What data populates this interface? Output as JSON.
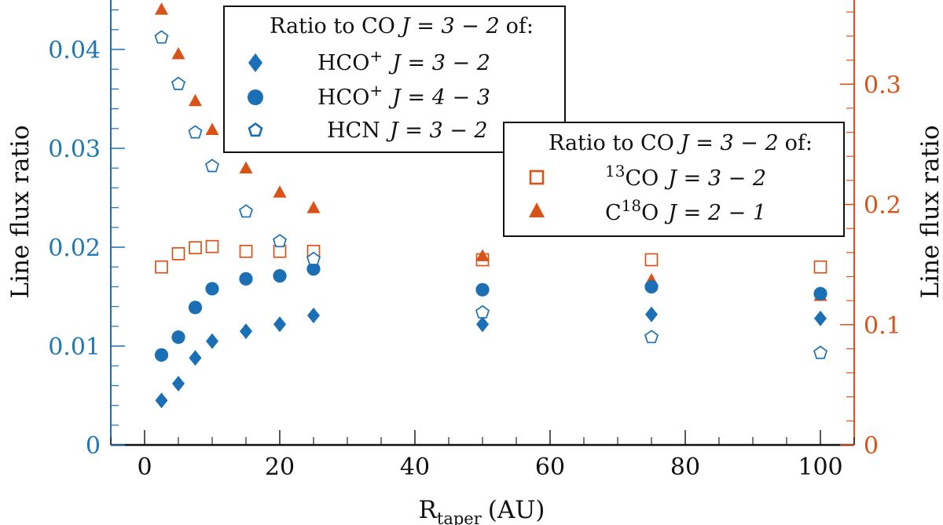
{
  "colors": {
    "blue": "#1a6fb5",
    "orange": "#d95319",
    "text": "#111111"
  },
  "chart_data": {
    "type": "scatter",
    "xlabel_main": "R",
    "xlabel_sub": "taper",
    "xlabel_unit": "(AU)",
    "ylabel_left": "Line flux ratio",
    "ylabel_right": "Line flux ratio",
    "xlim": [
      -5,
      105
    ],
    "ylim_left": [
      0,
      0.045
    ],
    "ylim_right": [
      0,
      0.37
    ],
    "x_ticks": [
      {
        "value": 0,
        "label": "0"
      },
      {
        "value": 20,
        "label": "20"
      },
      {
        "value": 40,
        "label": "40"
      },
      {
        "value": 60,
        "label": "60"
      },
      {
        "value": 80,
        "label": "80"
      },
      {
        "value": 100,
        "label": "100"
      }
    ],
    "left_ticks": [
      {
        "value": 0,
        "label": "0"
      },
      {
        "value": 0.01,
        "label": "0.01"
      },
      {
        "value": 0.02,
        "label": "0.02"
      },
      {
        "value": 0.03,
        "label": "0.03"
      },
      {
        "value": 0.04,
        "label": "0.04"
      }
    ],
    "right_ticks": [
      {
        "value": 0,
        "label": "0"
      },
      {
        "value": 0.1,
        "label": "0.1"
      },
      {
        "value": 0.2,
        "label": "0.2"
      },
      {
        "value": 0.3,
        "label": "0.3"
      }
    ],
    "x": [
      2.5,
      5,
      7.5,
      10,
      15,
      20,
      25,
      50,
      75,
      100
    ],
    "series": [
      {
        "name": "HCO+ J=3-2",
        "axis": "left",
        "color": "blue",
        "marker": "diamond-filled",
        "values": [
          0.0045,
          0.0062,
          0.0088,
          0.0105,
          0.0115,
          0.0122,
          0.0131,
          0.0122,
          0.0132,
          0.0128
        ]
      },
      {
        "name": "HCO+ J=4-3",
        "axis": "left",
        "color": "blue",
        "marker": "circle-filled",
        "values": [
          0.0091,
          0.0109,
          0.0139,
          0.0158,
          0.0168,
          0.0171,
          0.0178,
          0.0157,
          0.016,
          0.0153
        ]
      },
      {
        "name": "HCN J=3-2",
        "axis": "left",
        "color": "blue",
        "marker": "pentagon-open",
        "values": [
          0.0412,
          0.0365,
          0.0316,
          0.0282,
          0.0236,
          0.0206,
          0.0188,
          0.0134,
          0.0109,
          0.0093
        ]
      },
      {
        "name": "13CO J=3-2",
        "axis": "right",
        "color": "orange",
        "marker": "square-open",
        "values": [
          0.148,
          0.159,
          0.164,
          0.165,
          0.161,
          0.161,
          0.161,
          0.154,
          0.154,
          0.148
        ]
      },
      {
        "name": "C18O J=2-1",
        "axis": "right",
        "color": "orange",
        "marker": "triangle-filled",
        "values": [
          0.362,
          0.325,
          0.286,
          0.262,
          0.23,
          0.21,
          0.197,
          0.157,
          0.137,
          0.124
        ]
      }
    ],
    "legend1": {
      "title_prefix": "Ratio to CO",
      "title_transition": "J = 3 − 2",
      "title_suffix": "of:",
      "entries": [
        {
          "species": "HCO",
          "sup": "+",
          "transition": "J = 3 − 2"
        },
        {
          "species": "HCO",
          "sup": "+",
          "transition": "J = 4 − 3"
        },
        {
          "species": "HCN",
          "sup": "",
          "transition": "J = 3 − 2"
        }
      ]
    },
    "legend2": {
      "title_prefix": "Ratio to CO",
      "title_transition": "J = 3 − 2",
      "title_suffix": "of:",
      "entries": [
        {
          "pre": "",
          "sup": "13",
          "species": "CO",
          "transition": "J = 3 − 2"
        },
        {
          "pre": "C",
          "sup": "18",
          "species": "O",
          "transition": "J = 2 − 1"
        }
      ]
    }
  }
}
